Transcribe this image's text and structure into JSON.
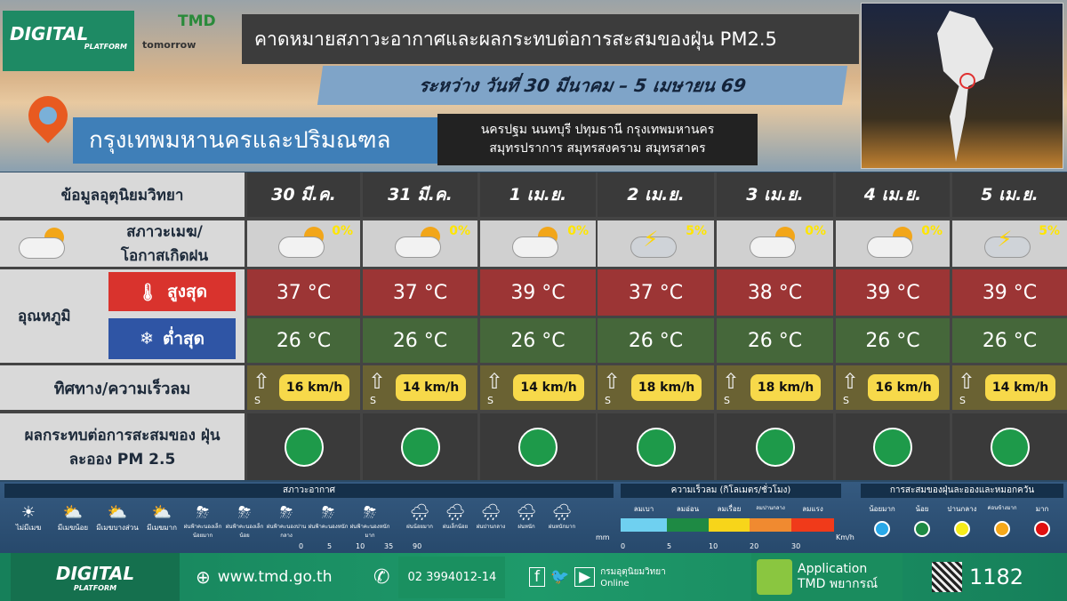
{
  "header": {
    "logo": "DIGITAL",
    "logo_sub": "PLATFORM",
    "partner1": "TMD",
    "partner2": "tomorrow",
    "title": "คาดหมายสภาวะอากาศและผลกระทบต่อการสะสมของฝุ่น PM2.5",
    "dates": "ระหว่าง วันที่ 30 มีนาคม – 5 เมษายน 69",
    "region": "กรุงเทพมหานครและปริมณฑล",
    "provinces_line1": "นครปฐม นนทบุรี ปทุมธานี กรุงเทพมหานคร",
    "provinces_line2": "สมุทรปราการ สมุทรสงคราม สมุทรสาคร"
  },
  "table": {
    "header_label": "ข้อมูลอุตุนิยมวิทยา",
    "weather_label": "สภาวะเมฆ/ โอกาสเกิดฝน",
    "temp_label": "อุณหภูมิ",
    "high_label": "สูงสุด",
    "low_label": "ต่ำสุด",
    "wind_label": "ทิศทาง/ความเร็วลม",
    "pm_label": "ผลกระทบต่อการสะสมของ ฝุ่นละออง PM 2.5",
    "days": [
      {
        "date": "30 มี.ค.",
        "icon": "partly-cloudy",
        "rain": "0%",
        "high": "37 °C",
        "low": "26 °C",
        "wind_dir": "S",
        "wind": "16 km/h",
        "pm_color": "#1e9a4a"
      },
      {
        "date": "31 มี.ค.",
        "icon": "partly-cloudy",
        "rain": "0%",
        "high": "37 °C",
        "low": "26 °C",
        "wind_dir": "S",
        "wind": "14 km/h",
        "pm_color": "#1e9a4a"
      },
      {
        "date": "1 เม.ย.",
        "icon": "partly-cloudy",
        "rain": "0%",
        "high": "39 °C",
        "low": "26 °C",
        "wind_dir": "S",
        "wind": "14 km/h",
        "pm_color": "#1e9a4a"
      },
      {
        "date": "2 เม.ย.",
        "icon": "thunderstorm",
        "rain": "5%",
        "high": "37 °C",
        "low": "26 °C",
        "wind_dir": "S",
        "wind": "18 km/h",
        "pm_color": "#1e9a4a"
      },
      {
        "date": "3 เม.ย.",
        "icon": "partly-cloudy",
        "rain": "0%",
        "high": "38 °C",
        "low": "26 °C",
        "wind_dir": "S",
        "wind": "18 km/h",
        "pm_color": "#1e9a4a"
      },
      {
        "date": "4 เม.ย.",
        "icon": "partly-cloudy",
        "rain": "0%",
        "high": "39 °C",
        "low": "26 °C",
        "wind_dir": "S",
        "wind": "16 km/h",
        "pm_color": "#1e9a4a"
      },
      {
        "date": "5 เม.ย.",
        "icon": "thunderstorm",
        "rain": "5%",
        "high": "39 °C",
        "low": "26 °C",
        "wind_dir": "S",
        "wind": "14 km/h",
        "pm_color": "#1e9a4a"
      }
    ]
  },
  "legend": {
    "weather_title": "สภาวะอากาศ",
    "clouds": [
      "ไม่มีเมฆ",
      "มีเมฆน้อย",
      "มีเมฆบางส่วน",
      "มีเมฆมาก"
    ],
    "storms": [
      "ฝนฟ้าคะนองเล็กน้อยมาก",
      "ฝนฟ้าคะนองเล็กน้อย",
      "ฝนฟ้าคะนองปานกลาง",
      "ฝนฟ้าคะนองหนัก",
      "ฝนฟ้าคะนองหนักมาก"
    ],
    "rains": [
      "ฝนน้อยมาก",
      "ฝนเล็กน้อย",
      "ฝนปานกลาง",
      "ฝนหนัก",
      "ฝนหนักมาก"
    ],
    "rain_ticks": [
      "0",
      "5",
      "10",
      "35",
      "90"
    ],
    "rain_unit": "mm",
    "wind_title": "ความเร็วลม (กิโลเมตร/ชั่วโมง)",
    "wind_levels": [
      {
        "label": "ลมเบา",
        "color": "#6fd0f0"
      },
      {
        "label": "ลมอ่อน",
        "color": "#1e8a44"
      },
      {
        "label": "ลมเรื่อย",
        "color": "#f7d51a"
      },
      {
        "label": "ลมปานกลาง",
        "color": "#f08a30"
      },
      {
        "label": "ลมแรง",
        "color": "#f03a1a"
      }
    ],
    "wind_ticks": [
      "0",
      "5",
      "10",
      "20",
      "30"
    ],
    "wind_unit": "Km/h",
    "pm_title": "การสะสมของฝุ่นละอองและหมอกควัน",
    "pm_levels": [
      {
        "label": "น้อยมาก",
        "color": "#29a8e8"
      },
      {
        "label": "น้อย",
        "color": "#1e8a44"
      },
      {
        "label": "ปานกลาง",
        "color": "#f7ec1a"
      },
      {
        "label": "ค่อนข้างมาก",
        "color": "#f5a81a"
      },
      {
        "label": "มาก",
        "color": "#e01010"
      }
    ]
  },
  "footer": {
    "logo": "DIGITAL",
    "logo_sub": "PLATFORM",
    "website": "www.tmd.go.th",
    "phone": "02 3994012-14",
    "social": "กรมอุตุนิยมวิทยา Online",
    "app_line1": "Application",
    "app_line2": "TMD พยากรณ์",
    "hotline": "1182"
  }
}
